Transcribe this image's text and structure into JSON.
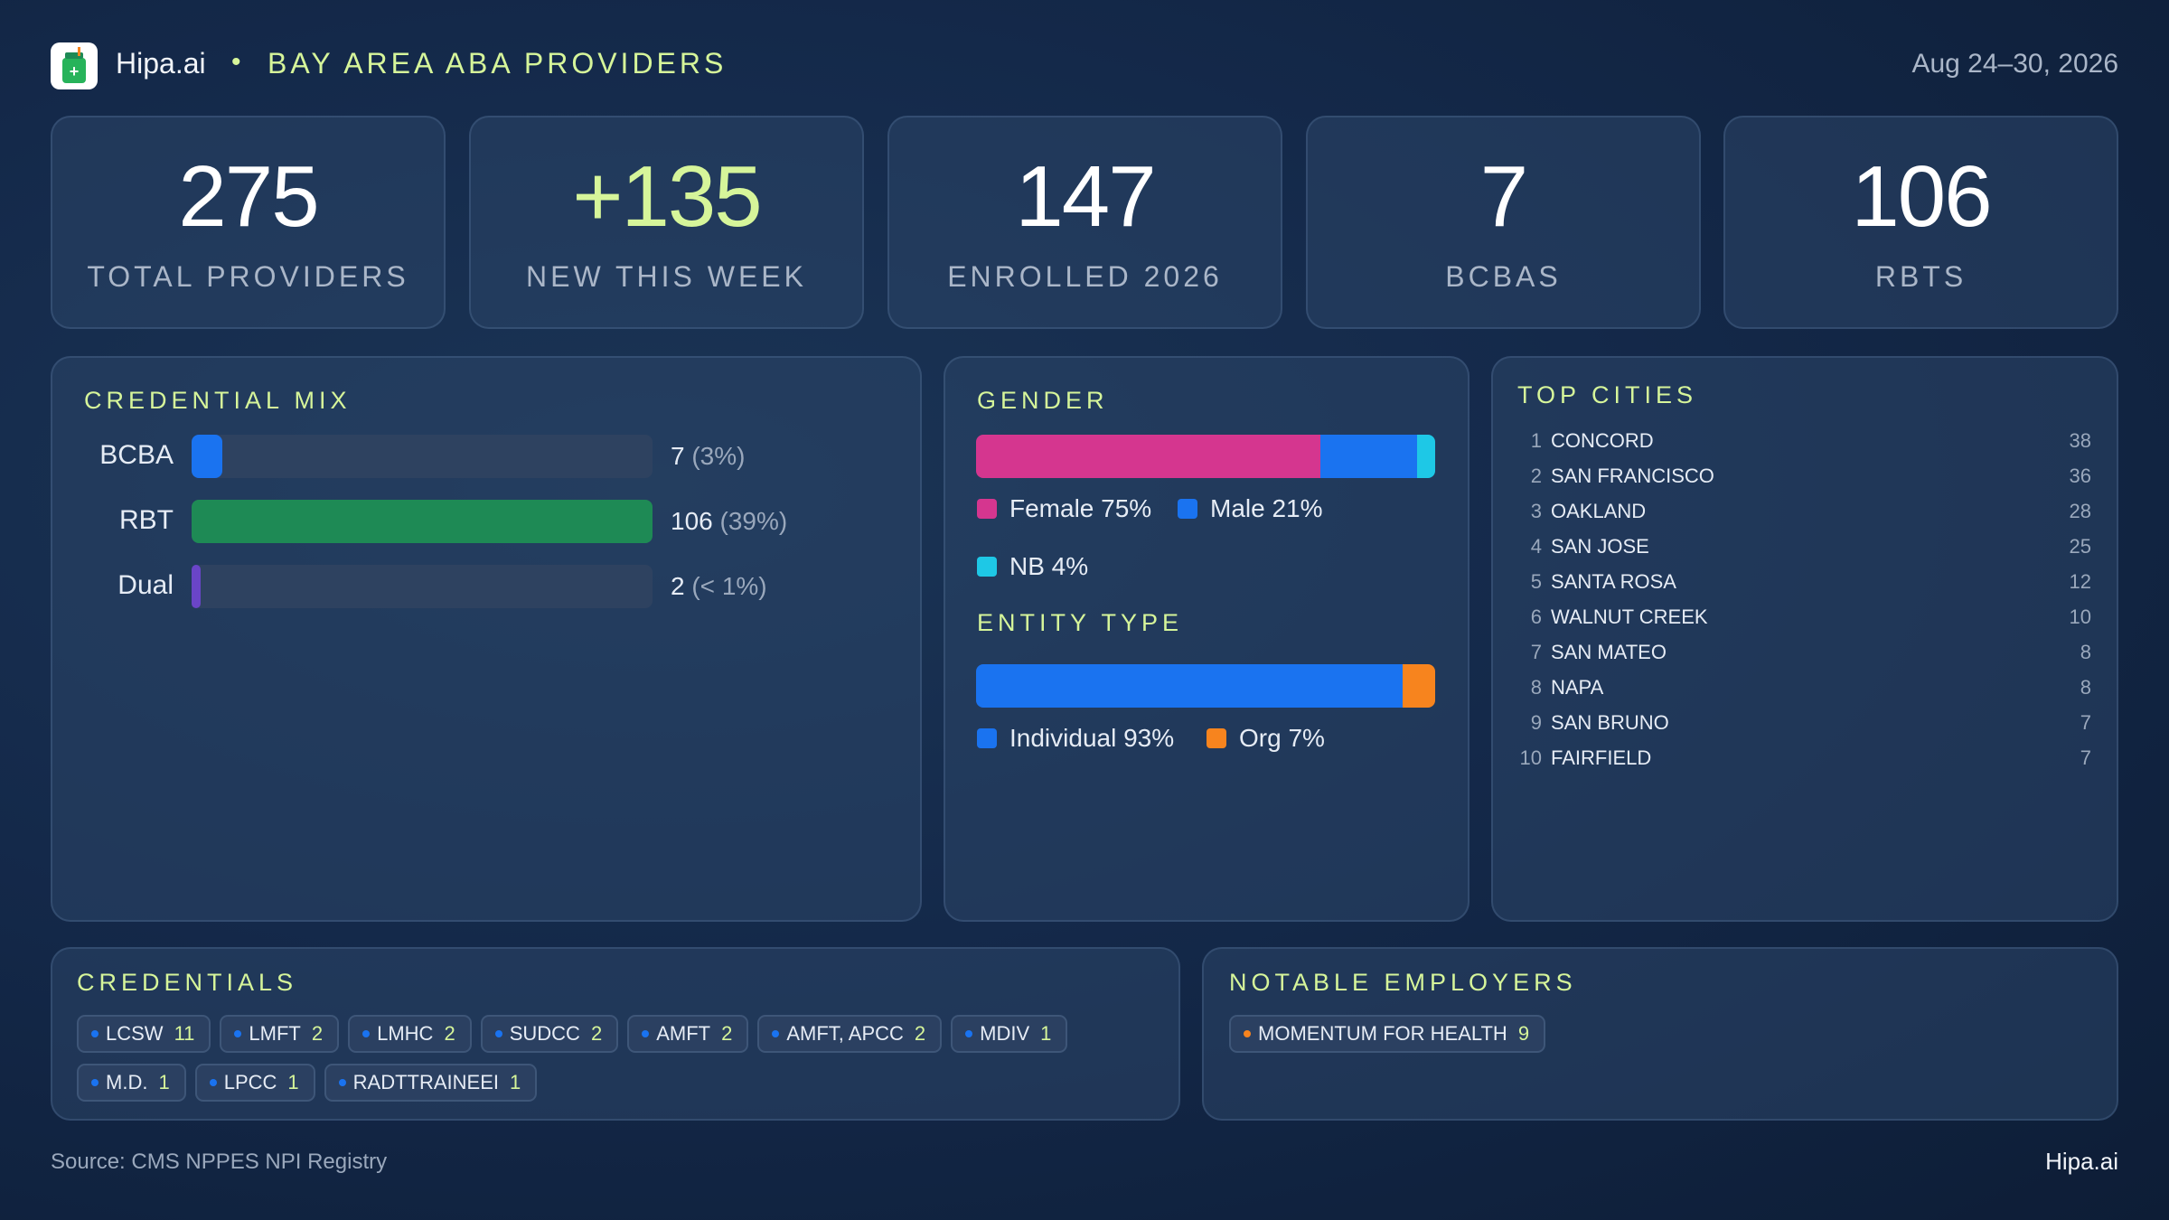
{
  "header": {
    "brand": "Hipa.ai",
    "separator": "•",
    "title": "BAY AREA ABA PROVIDERS",
    "date_range": "Aug 24–30, 2026"
  },
  "stats": [
    {
      "value": "275",
      "label": "TOTAL PROVIDERS"
    },
    {
      "value": "+135",
      "label": "NEW THIS WEEK"
    },
    {
      "value": "147",
      "label": "ENROLLED 2026"
    },
    {
      "value": "7",
      "label": "BCBAS"
    },
    {
      "value": "106",
      "label": "RBTS"
    }
  ],
  "colors": {
    "accent": "#d6f59a",
    "bcba": "#1a73f0",
    "rbt": "#1e8a55",
    "dual": "#6a45c8",
    "female": "#d5368f",
    "male": "#1a73f0",
    "nb": "#1ec8e6",
    "individual": "#1a73f0",
    "org": "#f7841e"
  },
  "chart_data": [
    {
      "type": "bar",
      "title": "CREDENTIAL MIX",
      "orientation": "horizontal",
      "categories": [
        "BCBA",
        "RBT",
        "Dual"
      ],
      "values": [
        7,
        106,
        2
      ],
      "value_labels": [
        "7",
        "106",
        "2"
      ],
      "percent_labels": [
        "(3%)",
        "(39%)",
        "(< 1%)"
      ],
      "xlim": [
        0,
        106
      ]
    },
    {
      "type": "bar",
      "title": "GENDER",
      "stacked": true,
      "categories": [
        "Female",
        "Male",
        "NB"
      ],
      "values": [
        75,
        21,
        4
      ],
      "legend_labels": [
        "Female 75%",
        "Male 21%",
        "NB 4%"
      ]
    },
    {
      "type": "bar",
      "title": "ENTITY TYPE",
      "stacked": true,
      "categories": [
        "Individual",
        "Org"
      ],
      "values": [
        93,
        7
      ],
      "legend_labels": [
        "Individual 93%",
        "Org 7%"
      ]
    },
    {
      "type": "table",
      "title": "TOP CITIES",
      "rows": [
        {
          "rank": "1",
          "city": "CONCORD",
          "count": "38"
        },
        {
          "rank": "2",
          "city": "SAN FRANCISCO",
          "count": "36"
        },
        {
          "rank": "3",
          "city": "OAKLAND",
          "count": "28"
        },
        {
          "rank": "4",
          "city": "SAN JOSE",
          "count": "25"
        },
        {
          "rank": "5",
          "city": "SANTA ROSA",
          "count": "12"
        },
        {
          "rank": "6",
          "city": "WALNUT CREEK",
          "count": "10"
        },
        {
          "rank": "7",
          "city": "SAN MATEO",
          "count": "8"
        },
        {
          "rank": "8",
          "city": "NAPA",
          "count": "8"
        },
        {
          "rank": "9",
          "city": "SAN BRUNO",
          "count": "7"
        },
        {
          "rank": "10",
          "city": "FAIRFIELD",
          "count": "7"
        }
      ]
    }
  ],
  "credentials": {
    "title": "CREDENTIALS",
    "items": [
      {
        "name": "LCSW",
        "count": "11"
      },
      {
        "name": "LMFT",
        "count": "2"
      },
      {
        "name": "LMHC",
        "count": "2"
      },
      {
        "name": "SUDCC",
        "count": "2"
      },
      {
        "name": "AMFT",
        "count": "2"
      },
      {
        "name": "AMFT, APCC",
        "count": "2"
      },
      {
        "name": "MDIV",
        "count": "1"
      },
      {
        "name": "M.D.",
        "count": "1"
      },
      {
        "name": "LPCC",
        "count": "1"
      },
      {
        "name": "RADTTRAINEEI",
        "count": "1"
      }
    ]
  },
  "employers": {
    "title": "NOTABLE EMPLOYERS",
    "items": [
      {
        "name": "MOMENTUM FOR HEALTH",
        "count": "9"
      }
    ]
  },
  "footer": {
    "source": "Source: CMS NPPES NPI Registry",
    "brand": "Hipa.ai"
  }
}
